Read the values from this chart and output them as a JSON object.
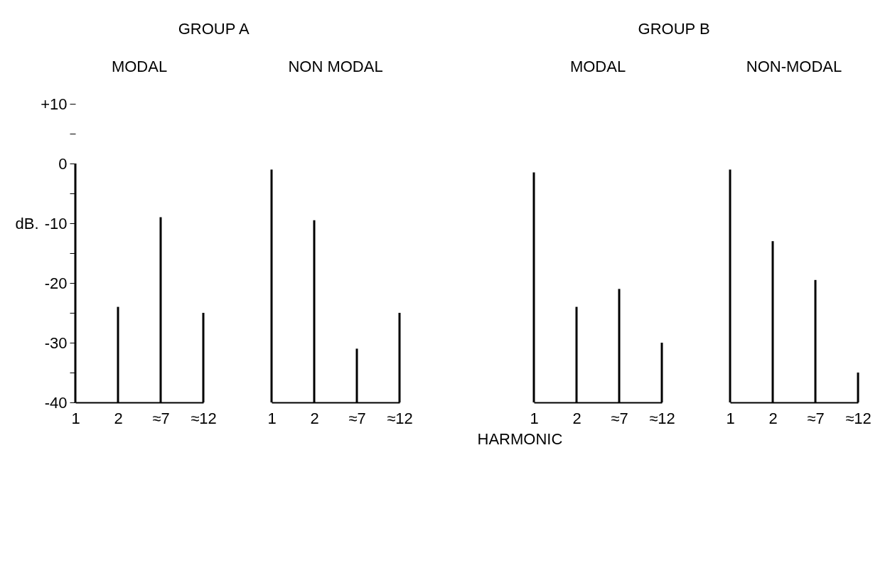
{
  "chart_data": [
    {
      "type": "bar",
      "title": "GROUP A",
      "subtitle": "MODAL",
      "ylabel": "dB.",
      "categories": [
        "1",
        "2",
        "≈7",
        "≈12"
      ],
      "base": [
        -40,
        -40,
        -40,
        -40
      ],
      "values": [
        40,
        16,
        31,
        15
      ],
      "color": "#000000",
      "ylim": [
        -40,
        10
      ],
      "yticks": [
        {
          "value": 10,
          "label": "+10"
        },
        {
          "value": 5,
          "label": null
        },
        0,
        {
          "value": -5,
          "label": null
        },
        -10,
        {
          "value": -15,
          "label": null
        },
        -20,
        {
          "value": -25,
          "label": null
        },
        -30,
        {
          "value": -35,
          "label": null
        },
        -40
      ],
      "grid": false
    },
    {
      "type": "bar",
      "subtitle": "NON MODAL",
      "categories": [
        "1",
        "2",
        "≈7",
        "≈12"
      ],
      "base": [
        -40,
        -40,
        -40,
        -40
      ],
      "values": [
        39,
        30.5,
        9,
        15
      ],
      "color": "#000000",
      "ylim": [
        -40,
        10
      ],
      "tick_labels": "x",
      "grid": false
    },
    {
      "type": "bar",
      "title": "GROUP B",
      "subtitle": "MODAL",
      "xlabel": "HARMONIC",
      "categories": [
        "1",
        "2",
        "≈7",
        "≈12"
      ],
      "base": [
        -40,
        -40,
        -40,
        -40
      ],
      "values": [
        38.5,
        16,
        19,
        10
      ],
      "color": "#000000",
      "ylim": [
        -40,
        10
      ],
      "tick_labels": "x",
      "grid": false
    },
    {
      "type": "bar",
      "subtitle": "NON-MODAL",
      "categories": [
        "1",
        "2",
        "≈7",
        "≈12"
      ],
      "base": [
        -40,
        -40,
        -40,
        -40
      ],
      "values": [
        39,
        27,
        20.5,
        5
      ],
      "color": "#000000",
      "ylim": [
        -40,
        10
      ],
      "tick_labels": "x",
      "grid": false
    }
  ]
}
